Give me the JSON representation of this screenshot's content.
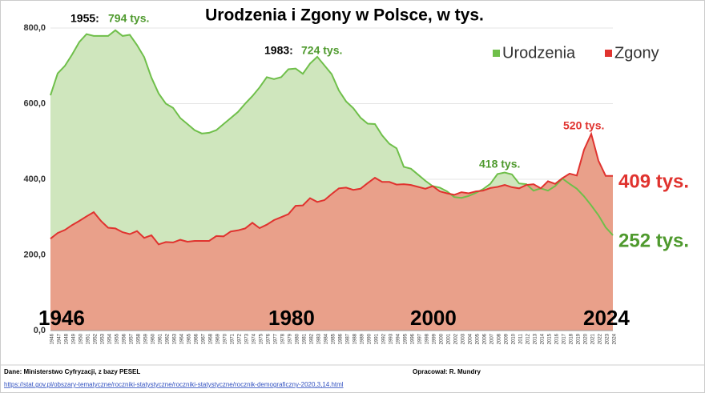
{
  "chart_data": {
    "type": "area",
    "title": "Urodzenia i Zgony w Polsce, w tys.",
    "categories": [
      "1946",
      "1947",
      "1948",
      "1949",
      "1950",
      "1951",
      "1952",
      "1953",
      "1954",
      "1955",
      "1956",
      "1957",
      "1958",
      "1959",
      "1960",
      "1961",
      "1962",
      "1963",
      "1964",
      "1965",
      "1966",
      "1967",
      "1968",
      "1969",
      "1970",
      "1971",
      "1972",
      "1973",
      "1974",
      "1975",
      "1976",
      "1977",
      "1978",
      "1979",
      "1980",
      "1981",
      "1982",
      "1983",
      "1984",
      "1985",
      "1986",
      "1987",
      "1988",
      "1989",
      "1990",
      "1991",
      "1992",
      "1993",
      "1994",
      "1995",
      "1996",
      "1997",
      "1998",
      "1999",
      "2000",
      "2001",
      "2002",
      "2003",
      "2004",
      "2005",
      "2006",
      "2007",
      "2008",
      "2009",
      "2010",
      "2011",
      "2012",
      "2013",
      "2014",
      "2015",
      "2016",
      "2017",
      "2018",
      "2019",
      "2020",
      "2021",
      "2022",
      "2023",
      "2024"
    ],
    "series": [
      {
        "name": "Urodzenia",
        "color": "#6fbf4a",
        "fill": "#cfe6bd",
        "values": [
          622,
          680,
          700,
          730,
          763,
          784,
          779,
          779,
          779,
          794,
          779,
          782,
          755,
          723,
          669,
          627,
          600,
          589,
          562,
          546,
          530,
          521,
          523,
          530,
          546,
          562,
          578,
          600,
          620,
          643,
          670,
          665,
          670,
          691,
          693,
          679,
          706,
          724,
          701,
          678,
          635,
          606,
          588,
          563,
          547,
          546,
          516,
          494,
          482,
          433,
          428,
          412,
          396,
          382,
          378,
          368,
          353,
          351,
          356,
          364,
          374,
          388,
          414,
          418,
          413,
          389,
          387,
          370,
          376,
          370,
          382,
          402,
          388,
          375,
          355,
          331,
          305,
          273,
          252
        ]
      },
      {
        "name": "Zgony",
        "color": "#e0332f",
        "fill": "#e9a08a",
        "values": [
          243,
          258,
          266,
          279,
          290,
          302,
          313,
          290,
          272,
          270,
          260,
          255,
          263,
          245,
          252,
          228,
          234,
          233,
          240,
          235,
          237,
          237,
          237,
          250,
          249,
          262,
          265,
          270,
          285,
          271,
          280,
          292,
          300,
          308,
          330,
          331,
          350,
          340,
          345,
          361,
          376,
          378,
          372,
          375,
          390,
          404,
          393,
          393,
          386,
          387,
          385,
          380,
          375,
          382,
          368,
          363,
          359,
          366,
          363,
          368,
          370,
          377,
          380,
          385,
          379,
          376,
          385,
          387,
          376,
          395,
          388,
          403,
          415,
          410,
          478,
          520,
          449,
          409,
          409
        ]
      }
    ],
    "ylim": [
      0,
      800
    ],
    "yticks": [
      {
        "value": 0,
        "label": "0,0"
      },
      {
        "value": 200,
        "label": "200,0"
      },
      {
        "value": 400,
        "label": "400,0"
      },
      {
        "value": 600,
        "label": "600,0"
      },
      {
        "value": 800,
        "label": "800,0"
      }
    ],
    "grid": true,
    "legend": "top-right",
    "annotations": [
      "1955:",
      "794 tys.",
      "1983:",
      "724 tys.",
      "418 tys.",
      "520 tys.",
      "409 tys.",
      "252 tys.",
      "1946",
      "1980",
      "2000",
      "2024"
    ]
  },
  "footer": {
    "source": "Dane: Ministerstwo Cyfryzacji, z bazy PESEL",
    "author": "Opracował: R. Mundry",
    "link": "https://stat.gov.pl/obszary-tematyczne/roczniki-statystyczne/roczniki-statystyczne/rocznik-demograficzny-2020,3,14.html"
  }
}
